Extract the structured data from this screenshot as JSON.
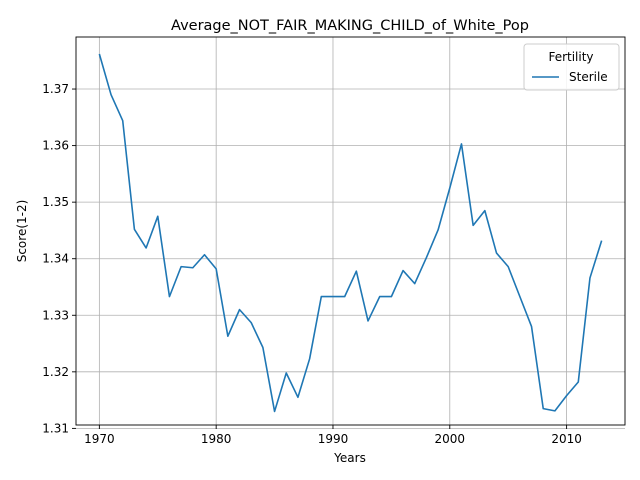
{
  "chart_data": {
    "type": "line",
    "title": "Average_NOT_FAIR_MAKING_CHILD_of_White_Pop",
    "xlabel": "Years",
    "ylabel": "Score(1-2)",
    "xlim": [
      1968,
      2015
    ],
    "ylim": [
      1.3106,
      1.3792
    ],
    "grid": true,
    "xticks": [
      1970,
      1980,
      1990,
      2000,
      2010
    ],
    "yticks": [
      1.31,
      1.32,
      1.33,
      1.34,
      1.35,
      1.36,
      1.37
    ],
    "legend": {
      "title": "Fertility",
      "position": "top-right"
    },
    "series": [
      {
        "name": "Sterile",
        "color": "#1f77b4",
        "x": [
          1970,
          1971,
          1972,
          1973,
          1974,
          1975,
          1976,
          1977,
          1978,
          1979,
          1980,
          1981,
          1982,
          1983,
          1984,
          1985,
          1986,
          1987,
          1988,
          1989,
          1990,
          1991,
          1992,
          1993,
          1994,
          1995,
          1996,
          1997,
          1998,
          1999,
          2000,
          2001,
          2002,
          2003,
          2004,
          2005,
          2006,
          2007,
          2008,
          2009,
          2010,
          2011,
          2012,
          2013
        ],
        "y": [
          1.3762,
          1.369,
          1.3644,
          1.3452,
          1.3419,
          1.3475,
          1.3333,
          1.3386,
          1.3384,
          1.3407,
          1.3382,
          1.3263,
          1.331,
          1.3287,
          1.3243,
          1.313,
          1.3198,
          1.3155,
          1.3223,
          1.3333,
          1.3333,
          1.3333,
          1.3378,
          1.329,
          1.3333,
          1.3333,
          1.3379,
          1.3356,
          1.3402,
          1.3451,
          1.3525,
          1.3603,
          1.3459,
          1.3485,
          1.341,
          1.3386,
          1.3333,
          1.328,
          1.3135,
          1.3131,
          1.3158,
          1.3182,
          1.3366,
          1.3432
        ]
      }
    ]
  }
}
